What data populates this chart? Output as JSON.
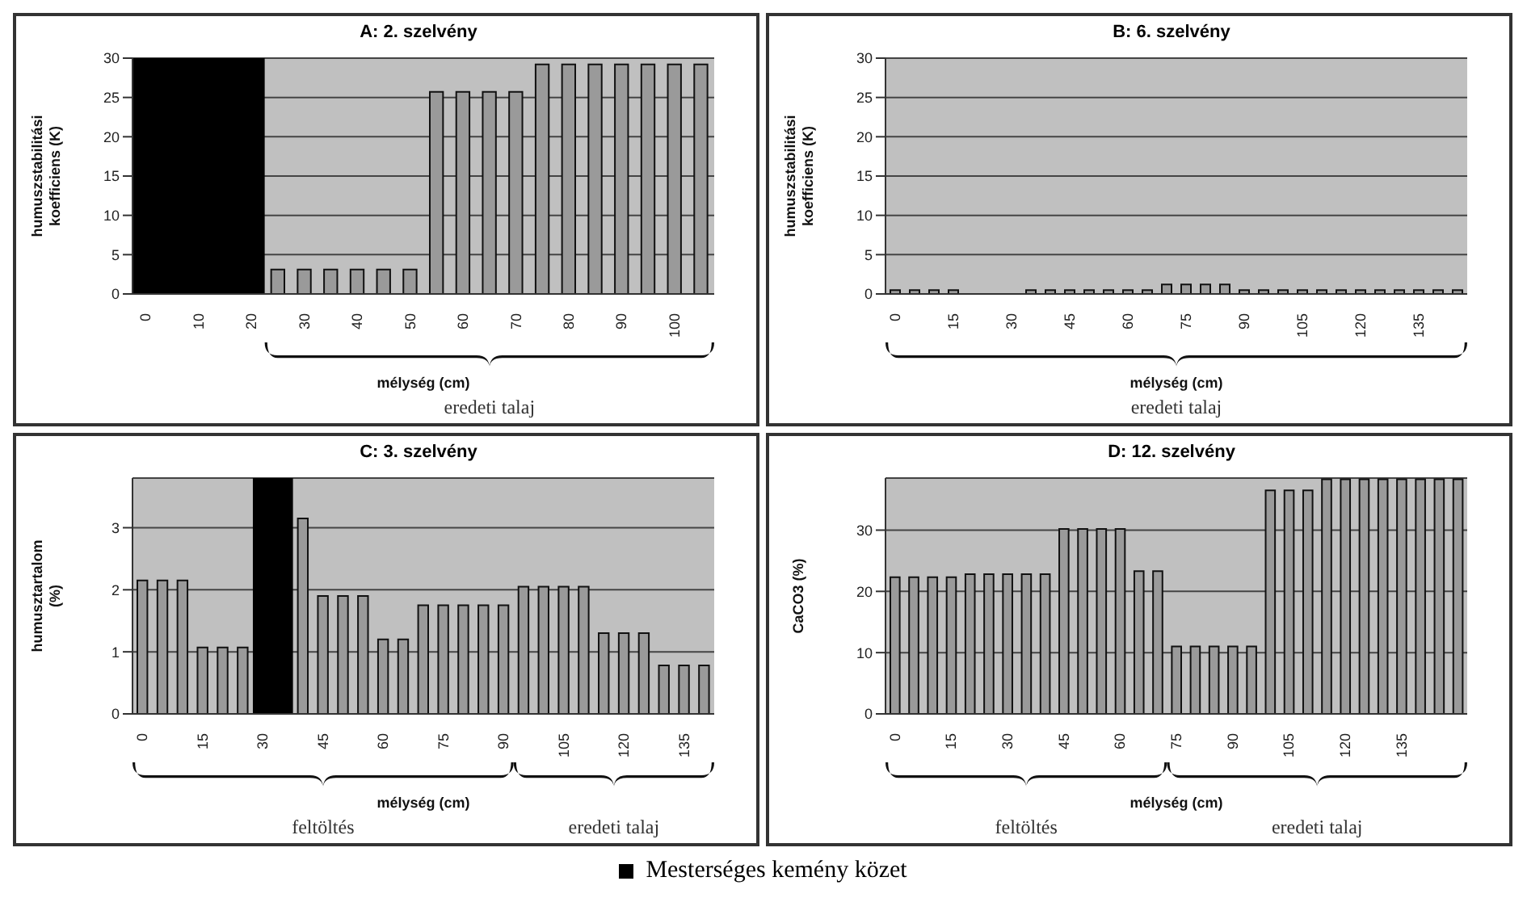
{
  "chart_data": [
    {
      "type": "bar",
      "title": "A: 2. szelvény",
      "xlabel": "mélység (cm)",
      "ylabel": "humuszstabilitási koefficiens (K)",
      "annotations": [
        "eredeti talaj"
      ],
      "x": [
        25,
        30,
        35,
        40,
        45,
        50,
        55,
        60,
        65,
        70,
        75,
        80,
        85,
        90,
        95,
        100,
        105
      ],
      "values": [
        3.1,
        3.1,
        3.1,
        3.1,
        3.1,
        3.1,
        25.7,
        25.7,
        25.7,
        25.7,
        29.2,
        29.2,
        29.2,
        29.2,
        29.2,
        29.2,
        29.2
      ],
      "color": "#9a9a9a",
      "xlim": [
        -2.5,
        107.5
      ],
      "xticks": [
        0,
        10,
        20,
        30,
        40,
        50,
        60,
        70,
        80,
        90,
        100
      ],
      "ylim": [
        0,
        30
      ],
      "yticks": [
        0,
        5,
        10,
        15,
        20,
        25,
        30
      ],
      "grid": "y",
      "legend": "bottom",
      "bands": [
        {
          "axis": "x",
          "from": -2.5,
          "to": 22.5,
          "label": "Mesterséges kemény közet",
          "color": "#000000"
        }
      ]
    },
    {
      "type": "bar",
      "title": "B: 6. szelvény",
      "xlabel": "mélység (cm)",
      "ylabel": "humuszstabilitási koefficiens (K)",
      "annotations": [
        "eredeti talaj"
      ],
      "x": [
        0,
        5,
        10,
        15,
        35,
        40,
        45,
        50,
        55,
        60,
        65,
        70,
        75,
        80,
        85,
        90,
        95,
        100,
        105,
        110,
        115,
        120,
        125,
        130,
        135,
        140,
        145
      ],
      "values": [
        0.5,
        0.5,
        0.5,
        0.5,
        0.5,
        0.5,
        0.5,
        0.5,
        0.5,
        0.5,
        0.5,
        1.2,
        1.2,
        1.2,
        1.2,
        0.5,
        0.5,
        0.5,
        0.5,
        0.5,
        0.5,
        0.5,
        0.5,
        0.5,
        0.5,
        0.5,
        0.5
      ],
      "color": "#9a9a9a",
      "xlim": [
        -2.5,
        147.5
      ],
      "xticks": [
        0,
        15,
        30,
        45,
        60,
        75,
        90,
        105,
        120,
        135
      ],
      "ylim": [
        0,
        30
      ],
      "yticks": [
        0,
        5,
        10,
        15,
        20,
        25,
        30
      ],
      "grid": "y"
    },
    {
      "type": "bar",
      "title": "C: 3. szelvény",
      "xlabel": "mélység (cm)",
      "ylabel": "humusztartalom (%)",
      "annotations": [
        "feltöltés",
        "eredeti talaj"
      ],
      "x": [
        0,
        5,
        10,
        15,
        20,
        25,
        40,
        45,
        50,
        55,
        60,
        65,
        70,
        75,
        80,
        85,
        90,
        95,
        100,
        105,
        110,
        115,
        120,
        125,
        130,
        135,
        140
      ],
      "values": [
        2.15,
        2.15,
        2.15,
        1.07,
        1.07,
        1.07,
        3.15,
        1.9,
        1.9,
        1.9,
        1.2,
        1.2,
        1.75,
        1.75,
        1.75,
        1.75,
        1.75,
        2.05,
        2.05,
        2.05,
        2.05,
        1.3,
        1.3,
        1.3,
        0.78,
        0.78,
        0.78
      ],
      "color": "#9a9a9a",
      "xlim": [
        -2.5,
        142.5
      ],
      "xticks": [
        0,
        15,
        30,
        45,
        60,
        75,
        90,
        105,
        120,
        135
      ],
      "ylim": [
        0,
        3.8
      ],
      "yticks": [
        0,
        1,
        2,
        3
      ],
      "grid": "y",
      "bands": [
        {
          "axis": "x",
          "from": 27.5,
          "to": 37.5,
          "color": "#000000"
        }
      ]
    },
    {
      "type": "bar",
      "title": "D: 12. szelvény",
      "xlabel": "mélység (cm)",
      "ylabel": "CaCO3 (%)",
      "annotations": [
        "feltöltés",
        "eredeti talaj"
      ],
      "x": [
        0,
        5,
        10,
        15,
        20,
        25,
        30,
        35,
        40,
        45,
        50,
        55,
        60,
        65,
        70,
        75,
        80,
        85,
        90,
        95,
        100,
        105,
        110,
        115,
        120,
        125,
        130,
        135,
        140,
        145,
        150
      ],
      "values": [
        22.3,
        22.3,
        22.3,
        22.3,
        22.8,
        22.8,
        22.8,
        22.8,
        22.8,
        30.2,
        30.2,
        30.2,
        30.2,
        23.3,
        23.3,
        11,
        11,
        11,
        11,
        11,
        36.5,
        36.5,
        36.5,
        38.3,
        38.3,
        38.3,
        38.3,
        38.3,
        38.3,
        38.3,
        38.3
      ],
      "color": "#9a9a9a",
      "xlim": [
        -2.5,
        152.5
      ],
      "xticks": [
        0,
        15,
        30,
        45,
        60,
        75,
        90,
        105,
        120,
        135
      ],
      "ylim": [
        0,
        38.5
      ],
      "yticks": [
        0,
        10,
        20,
        30
      ],
      "grid": "y"
    }
  ]
}
